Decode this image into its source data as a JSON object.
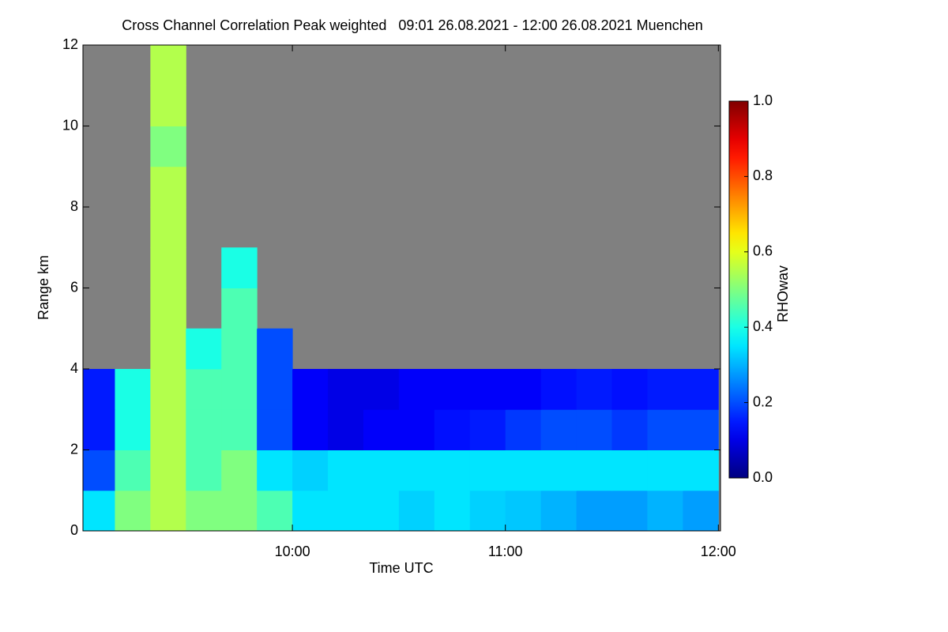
{
  "chart_data": {
    "type": "heatmap",
    "title": "Cross Channel Correlation Peak weighted   09:01 26.08.2021 - 12:00 26.08.2021 Muenchen",
    "x_label": "Time UTC",
    "y_label": "Range km",
    "colorbar_label": "RHOwav",
    "colormap": "jet",
    "missing_color": "#808080",
    "xlim": [
      9.0167,
      12.01
    ],
    "xticks": [
      {
        "value": 10,
        "label": "10:00"
      },
      {
        "value": 11,
        "label": "11:00"
      },
      {
        "value": 12,
        "label": "12:00"
      }
    ],
    "ylim": [
      0,
      12
    ],
    "yticks": [
      0,
      2,
      4,
      6,
      8,
      10,
      12
    ],
    "zlim": [
      0,
      1
    ],
    "zticks": [
      {
        "value": 0,
        "label": "0.0"
      },
      {
        "value": 0.2,
        "label": "0.2"
      },
      {
        "value": 0.4,
        "label": "0.4"
      },
      {
        "value": 0.6,
        "label": "0.6"
      },
      {
        "value": 0.8,
        "label": "0.8"
      },
      {
        "value": 1,
        "label": "1.0"
      }
    ],
    "xbins": [
      9.0167,
      9.1667,
      9.3333,
      9.5,
      9.6667,
      9.8333,
      10,
      10.1667,
      10.3333,
      10.5,
      10.6667,
      10.8333,
      11,
      11.1667,
      11.3333,
      11.5,
      11.6667,
      11.8333,
      12
    ],
    "ybins": [
      0,
      1,
      2,
      3,
      4,
      5,
      6,
      7,
      8,
      9,
      10,
      11,
      12
    ],
    "values": [
      [
        0.35,
        0.5,
        0.55,
        0.5,
        0.5,
        0.45,
        0.35,
        0.35,
        0.35,
        0.33,
        0.35,
        0.33,
        0.32,
        0.3,
        0.28,
        0.28,
        0.3,
        0.28
      ],
      [
        0.2,
        0.45,
        0.55,
        0.45,
        0.5,
        0.35,
        0.33,
        0.35,
        0.35,
        0.35,
        0.35,
        0.35,
        0.35,
        0.35,
        0.35,
        0.35,
        0.35,
        0.35
      ],
      [
        0.15,
        0.4,
        0.55,
        0.45,
        0.45,
        0.2,
        0.12,
        0.1,
        0.12,
        0.12,
        0.14,
        0.15,
        0.18,
        0.2,
        0.2,
        0.18,
        0.2,
        0.2
      ],
      [
        0.15,
        0.4,
        0.55,
        0.45,
        0.45,
        0.2,
        0.12,
        0.1,
        0.1,
        0.12,
        0.12,
        0.12,
        0.12,
        0.14,
        0.15,
        0.14,
        0.15,
        0.15
      ],
      [
        null,
        null,
        0.55,
        0.4,
        0.45,
        0.2,
        null,
        null,
        null,
        null,
        null,
        null,
        null,
        null,
        null,
        null,
        null,
        null
      ],
      [
        null,
        null,
        0.55,
        null,
        0.45,
        null,
        null,
        null,
        null,
        null,
        null,
        null,
        null,
        null,
        null,
        null,
        null,
        null
      ],
      [
        null,
        null,
        0.55,
        null,
        0.4,
        null,
        null,
        null,
        null,
        null,
        null,
        null,
        null,
        null,
        null,
        null,
        null,
        null
      ],
      [
        null,
        null,
        0.55,
        null,
        null,
        null,
        null,
        null,
        null,
        null,
        null,
        null,
        null,
        null,
        null,
        null,
        null,
        null
      ],
      [
        null,
        null,
        0.55,
        null,
        null,
        null,
        null,
        null,
        null,
        null,
        null,
        null,
        null,
        null,
        null,
        null,
        null,
        null
      ],
      [
        null,
        null,
        0.5,
        null,
        null,
        null,
        null,
        null,
        null,
        null,
        null,
        null,
        null,
        null,
        null,
        null,
        null,
        null
      ],
      [
        null,
        null,
        0.55,
        null,
        null,
        null,
        null,
        null,
        null,
        null,
        null,
        null,
        null,
        null,
        null,
        null,
        null,
        null
      ],
      [
        null,
        null,
        0.55,
        null,
        null,
        null,
        null,
        null,
        null,
        null,
        null,
        null,
        null,
        null,
        null,
        null,
        null,
        null
      ]
    ]
  }
}
